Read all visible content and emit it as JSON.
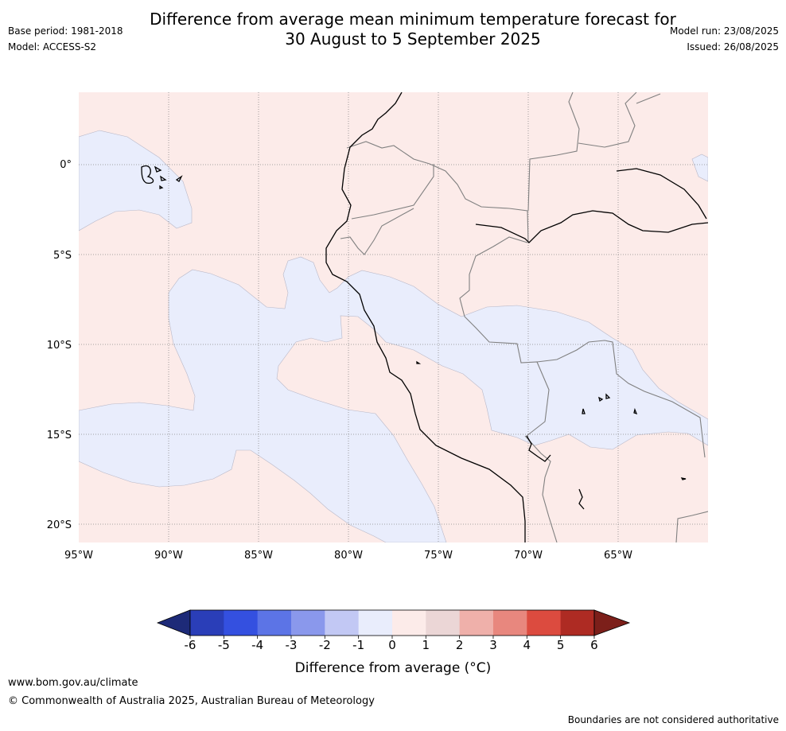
{
  "header": {
    "title_line1": "Difference from average mean minimum temperature forecast for",
    "title_line2": "30 August to 5 September 2025",
    "base_period": "Base period: 1981-2018",
    "model": "Model: ACCESS-S2",
    "model_run": "Model run: 23/08/2025",
    "issued": "Issued: 26/08/2025"
  },
  "map": {
    "lat_labels": [
      "0°",
      "5°S",
      "10°S",
      "15°S",
      "20°S"
    ],
    "lon_labels": [
      "95°W",
      "90°W",
      "85°W",
      "80°W",
      "75°W",
      "70°W",
      "65°W"
    ],
    "colors": {
      "warm_anomaly": "#fcebe9",
      "cool_anomaly": "#e9edfc",
      "coastline": "#000000",
      "borders": "#808080",
      "grid": "#888888"
    }
  },
  "colorbar": {
    "tick_labels": [
      "-6",
      "-5",
      "-4",
      "-3",
      "-2",
      "-1",
      "0",
      "1",
      "2",
      "3",
      "4",
      "5",
      "6"
    ],
    "colors": [
      "#1d2a78",
      "#2a3eb8",
      "#3450e0",
      "#5c74e6",
      "#8a98ec",
      "#c2c8f4",
      "#e9edfc",
      "#fcebe9",
      "#ebd6d6",
      "#efb0aa",
      "#e8877e",
      "#dc4b3f",
      "#ae2b23",
      "#7c1f1a"
    ],
    "label": "Difference from average (°C)"
  },
  "footer": {
    "url": "www.bom.gov.au/climate",
    "copyright": "© Commonwealth of Australia 2025, Australian Bureau of Meteorology",
    "disclaimer": "Boundaries are not considered authoritative"
  }
}
